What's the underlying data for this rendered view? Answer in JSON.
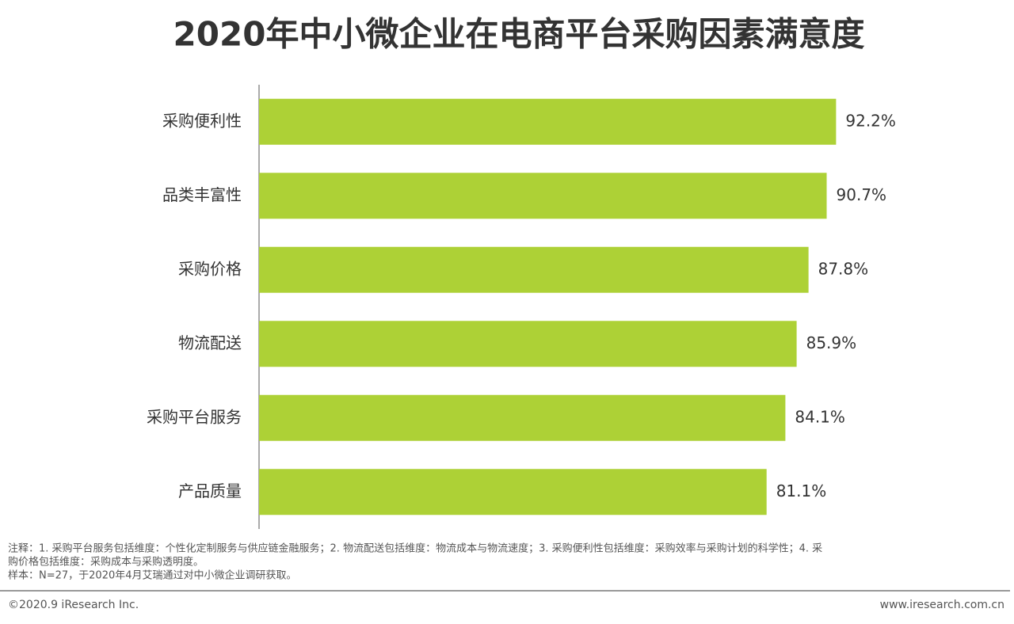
{
  "chart_data": {
    "type": "hbar",
    "title": "2020年中小微企业在电商平台采购因素满意度",
    "categories": [
      "采购便利性",
      "品类丰富性",
      "采购价格",
      "物流配送",
      "采购平台服务",
      "产品质量"
    ],
    "values": [
      92.2,
      90.7,
      87.8,
      85.9,
      84.1,
      81.1
    ],
    "value_labels": [
      "92.2%",
      "90.7%",
      "87.8%",
      "85.9%",
      "84.1%",
      "81.1%"
    ],
    "color": "#add136",
    "xlim": [
      0,
      100
    ]
  },
  "footer": {
    "notes": [
      "注释：1. 采购平台服务包括维度：个性化定制服务与供应链金融服务；2. 物流配送包括维度：物流成本与物流速度；3. 采购便利性包括维度：采购效率与采购计划的科学性；4. 采",
      "购价格包括维度：采购成本与采购透明度。",
      "样本：N=27，于2020年4月艾瑞通过对中小微企业调研获取。"
    ],
    "copyright": "©2020.9 iResearch Inc.",
    "website": "www.iresearch.com.cn"
  }
}
